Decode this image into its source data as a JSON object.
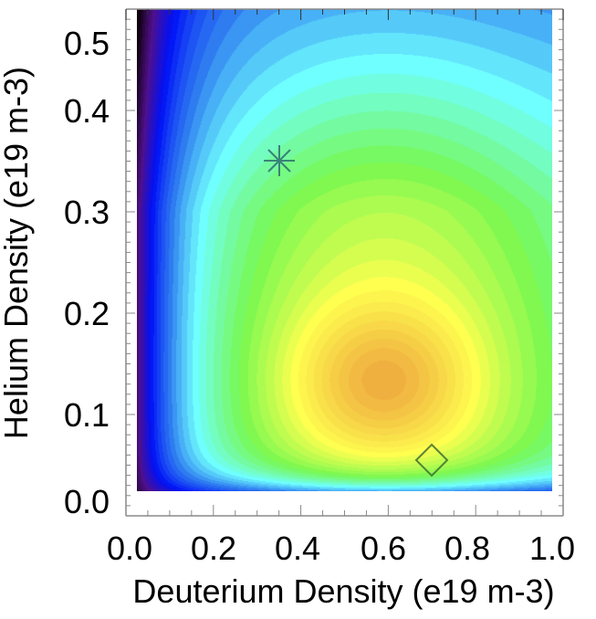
{
  "chart_data": {
    "type": "heatmap",
    "title": "",
    "xlabel": "Deuterium Density (e19 m-3)",
    "ylabel": "Helium Density (e19 m-3)",
    "xlim": [
      0.0,
      1.0
    ],
    "ylim": [
      0.0,
      0.5
    ],
    "x_ticks": [
      "0.0",
      "0.2",
      "0.4",
      "0.6",
      "0.8",
      "1.0"
    ],
    "y_ticks": [
      "0.0",
      "0.1",
      "0.2",
      "0.3",
      "0.4",
      "0.5"
    ],
    "data_extent": {
      "x": [
        0.02,
        0.98
      ],
      "y": [
        0.02,
        0.5
      ]
    },
    "colormap": "rainbow (black-purple-blue-cyan-green-yellow-orange)",
    "colorbar": false,
    "grid": false,
    "legend": null,
    "peak": {
      "x": 0.59,
      "y": 0.125,
      "color": "#f0b040"
    },
    "contour_levels_description": "filled contours, maximum near (0.6, 0.13), minimum along x=0 edge",
    "markers": [
      {
        "symbol": "asterisk",
        "x": 0.35,
        "y": 0.35,
        "color": "#2f6f70"
      },
      {
        "symbol": "diamond",
        "x": 0.7,
        "y": 0.055,
        "color": "#3f6f30"
      }
    ],
    "colors": {
      "min": "#100010",
      "purple": "#50108a",
      "blue": "#0010f8",
      "light_blue": "#3080f0",
      "cyan": "#70ffff",
      "green": "#78f850",
      "yellow": "#ffff50",
      "orange": "#f0b040"
    }
  }
}
